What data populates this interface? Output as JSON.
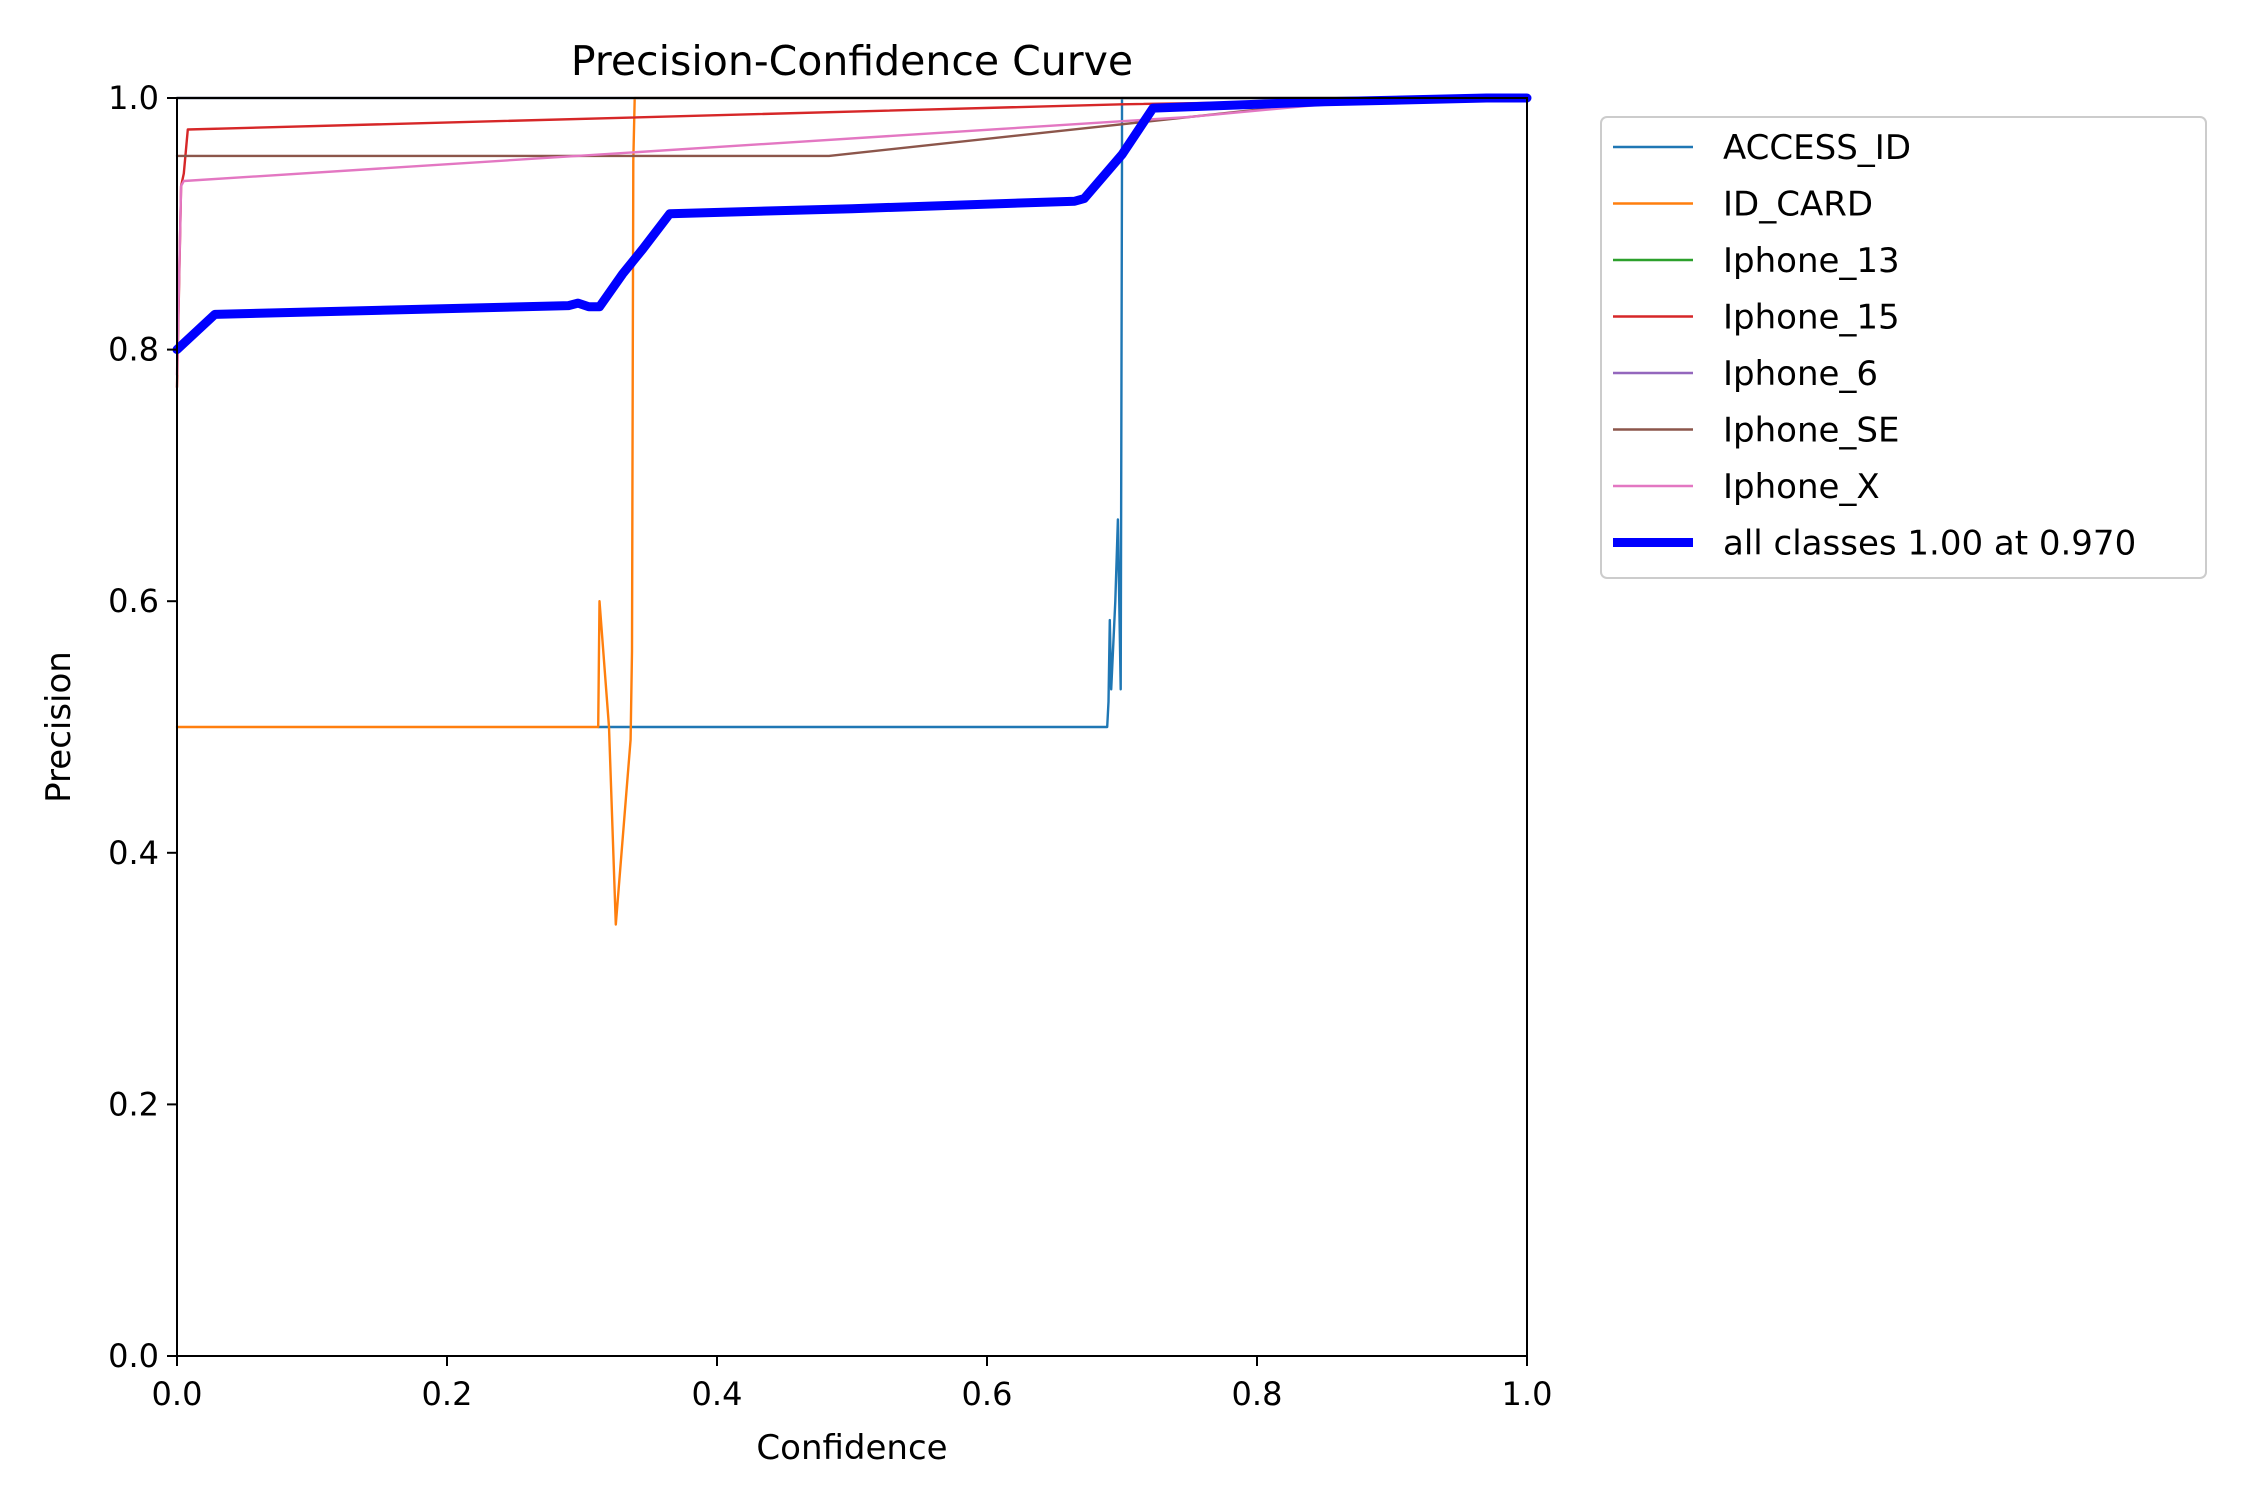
{
  "chart_data": {
    "type": "line",
    "title": "Precision-Confidence Curve",
    "xlabel": "Confidence",
    "ylabel": "Precision",
    "xlim": [
      0,
      1
    ],
    "ylim": [
      0,
      1
    ],
    "xticks": [
      "0.0",
      "0.2",
      "0.4",
      "0.6",
      "0.8",
      "1.0"
    ],
    "yticks": [
      "0.0",
      "0.2",
      "0.4",
      "0.6",
      "0.8",
      "1.0"
    ],
    "grid": false,
    "legend_position": "outside top-right",
    "series": [
      {
        "name": "ACCESS_ID",
        "color": "#1f77b4",
        "width": "thin",
        "x": [
          0.312,
          0.689,
          0.69,
          0.691,
          0.692,
          0.695,
          0.697,
          0.699,
          0.7,
          0.7,
          0.7,
          1.0
        ],
        "y": [
          0.5,
          0.5,
          0.52,
          0.585,
          0.53,
          0.6,
          0.665,
          0.53,
          0.95,
          1.0,
          1.0,
          1.0
        ]
      },
      {
        "name": "ID_CARD",
        "color": "#ff7f0e",
        "width": "thin",
        "x": [
          0.0,
          0.312,
          0.313,
          0.32,
          0.325,
          0.336,
          0.337,
          0.338,
          0.339,
          1.0
        ],
        "y": [
          0.5,
          0.5,
          0.6,
          0.5,
          0.343,
          0.49,
          0.56,
          0.95,
          1.0,
          1.0
        ]
      },
      {
        "name": "Iphone_13",
        "color": "#2ca02c",
        "width": "thin",
        "x": [
          0.0,
          1.0
        ],
        "y": [
          1.0,
          1.0
        ]
      },
      {
        "name": "Iphone_15",
        "color": "#d62728",
        "width": "thin",
        "x": [
          0.0,
          0.003,
          0.005,
          0.008,
          0.7,
          1.0
        ],
        "y": [
          0.77,
          0.93,
          0.94,
          0.975,
          0.995,
          1.0
        ]
      },
      {
        "name": "Iphone_6",
        "color": "#9467bd",
        "width": "thin",
        "x": [
          0.0,
          1.0
        ],
        "y": [
          1.0,
          1.0
        ]
      },
      {
        "name": "Iphone_SE",
        "color": "#8c564b",
        "width": "thin",
        "x": [
          0.0,
          0.483,
          0.88,
          1.0
        ],
        "y": [
          0.954,
          0.954,
          1.0,
          1.0
        ]
      },
      {
        "name": "Iphone_X",
        "color": "#e377c2",
        "width": "thin",
        "x": [
          0.0,
          0.003,
          0.005,
          0.75,
          0.9,
          1.0
        ],
        "y": [
          0.78,
          0.93,
          0.934,
          0.985,
          1.0,
          1.0
        ]
      },
      {
        "name": "all classes 1.00 at 0.970",
        "color": "#0000ff",
        "width": "thick",
        "x": [
          0.0,
          0.028,
          0.29,
          0.297,
          0.305,
          0.313,
          0.33,
          0.345,
          0.365,
          0.5,
          0.665,
          0.672,
          0.7,
          0.723,
          0.85,
          0.97,
          1.0
        ],
        "y": [
          0.8,
          0.828,
          0.835,
          0.837,
          0.834,
          0.834,
          0.86,
          0.88,
          0.908,
          0.912,
          0.918,
          0.92,
          0.955,
          0.992,
          0.997,
          1.0,
          1.0
        ]
      }
    ]
  }
}
